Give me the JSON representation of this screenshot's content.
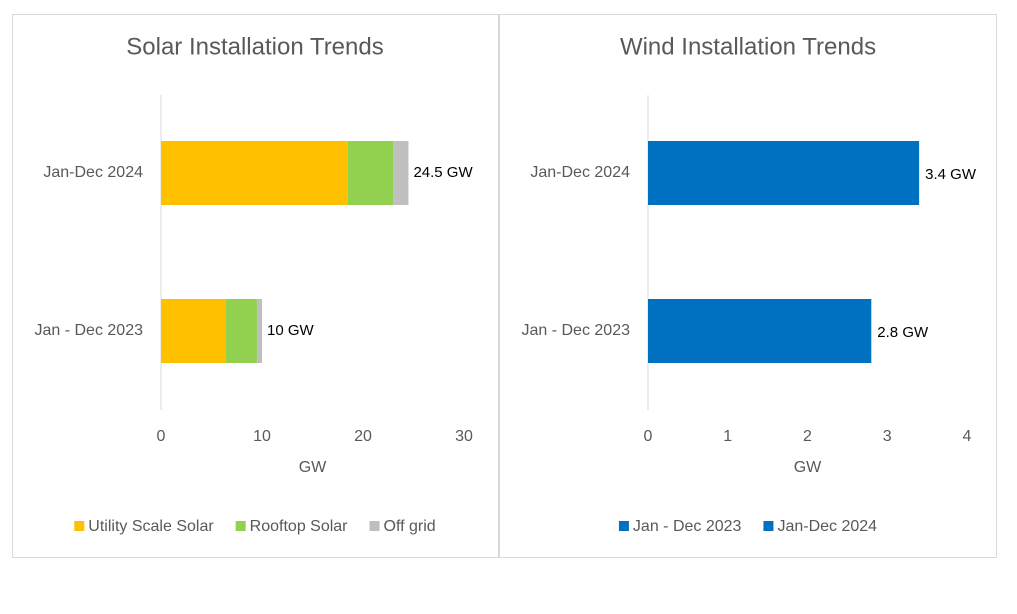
{
  "chart_data": [
    {
      "type": "stacked-hbar",
      "title": "Solar Installation Trends",
      "x_label": "GW",
      "categories": [
        "Jan-Dec 2024",
        "Jan - Dec 2023"
      ],
      "series": [
        {
          "name": "Utility Scale Solar",
          "color": "#ffc000",
          "values": [
            18.5,
            6.4
          ]
        },
        {
          "name": "Rooftop Solar",
          "color": "#92d050",
          "values": [
            4.5,
            3.1
          ]
        },
        {
          "name": "Off grid",
          "color": "#bfbfbf",
          "values": [
            1.5,
            0.5
          ]
        }
      ],
      "totals": [
        24.5,
        10
      ],
      "total_labels": [
        "24.5 GW",
        "10 GW"
      ],
      "xlim": [
        0,
        30
      ],
      "xticks": [
        0,
        10,
        20,
        30
      ],
      "legend": "bottom"
    },
    {
      "type": "hbar",
      "title": "Wind Installation Trends",
      "x_label": "GW",
      "categories": [
        "Jan-Dec 2024",
        "Jan - Dec 2023"
      ],
      "series": [
        {
          "name": "Jan - Dec 2023",
          "color": "#0070c0",
          "values": [
            null,
            2.8
          ],
          "value_labels": [
            null,
            "2.8 GW"
          ]
        },
        {
          "name": "Jan-Dec 2024",
          "color": "#0070c0",
          "values": [
            3.4,
            null
          ],
          "value_labels": [
            "3.4 GW",
            null
          ]
        }
      ],
      "xlim": [
        0,
        4
      ],
      "xticks": [
        0,
        1,
        2,
        3,
        4
      ],
      "legend": "bottom"
    }
  ]
}
